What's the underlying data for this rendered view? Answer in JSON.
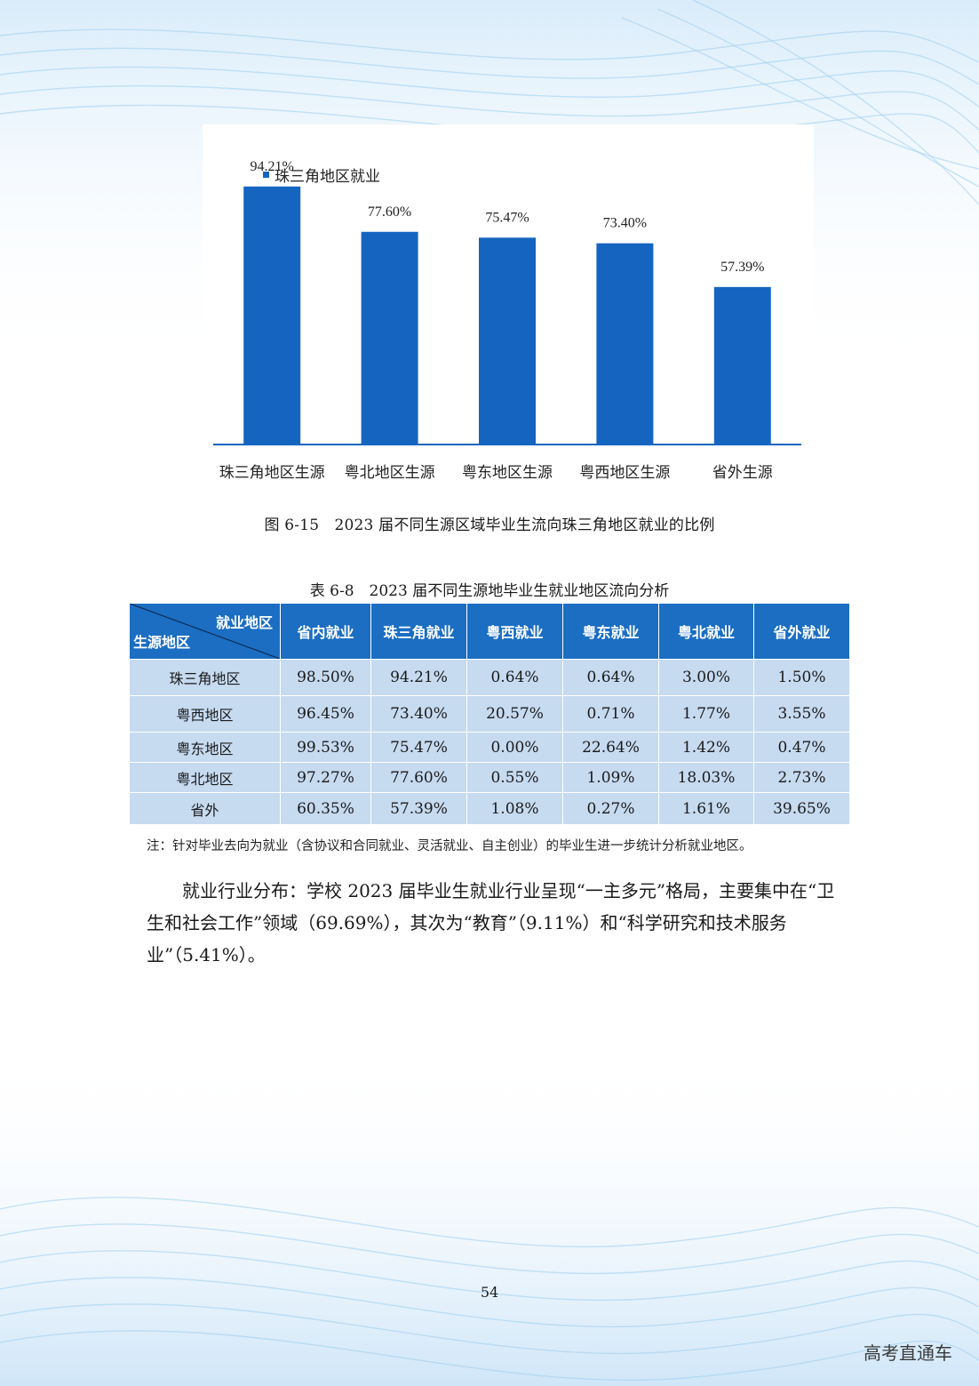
{
  "chart_data": {
    "type": "bar",
    "legend": "珠三角地区就业",
    "categories": [
      "珠三角地区生源",
      "粤北地区生源",
      "粤东地区生源",
      "粤西地区生源",
      "省外生源"
    ],
    "series": [
      {
        "name": "珠三角地区就业",
        "values": [
          94.21,
          77.6,
          75.47,
          73.4,
          57.39
        ]
      }
    ],
    "value_labels": [
      "94.21%",
      "77.60%",
      "75.47%",
      "73.40%",
      "57.39%"
    ],
    "ylim": [
      0,
      100
    ],
    "unit": "%",
    "grid": false,
    "legend_position": "top",
    "bar_color": "#1565c0"
  },
  "figure_caption": "图 6-15　2023 届不同生源区域毕业生流向珠三角地区就业的比例",
  "table": {
    "caption": "表 6-8　2023 届不同生源地毕业生就业地区流向分析",
    "corner_top": "就业地区",
    "corner_bottom": "生源地区",
    "columns": [
      "省内就业",
      "珠三角就业",
      "粤西就业",
      "粤东就业",
      "粤北就业",
      "省外就业"
    ],
    "rows": [
      {
        "label": "珠三角地区",
        "cells": [
          "98.50%",
          "94.21%",
          "0.64%",
          "0.64%",
          "3.00%",
          "1.50%"
        ]
      },
      {
        "label": "粤西地区",
        "cells": [
          "96.45%",
          "73.40%",
          "20.57%",
          "0.71%",
          "1.77%",
          "3.55%"
        ]
      },
      {
        "label": "粤东地区",
        "cells": [
          "99.53%",
          "75.47%",
          "0.00%",
          "22.64%",
          "1.42%",
          "0.47%"
        ]
      },
      {
        "label": "粤北地区",
        "cells": [
          "97.27%",
          "77.60%",
          "0.55%",
          "1.09%",
          "18.03%",
          "2.73%"
        ]
      },
      {
        "label": "省外",
        "cells": [
          "60.35%",
          "57.39%",
          "1.08%",
          "0.27%",
          "1.61%",
          "39.65%"
        ]
      }
    ],
    "header_color": "#1b6ec2",
    "body_color": "#c6daf0"
  },
  "note": "注：针对毕业去向为就业（含协议和合同就业、灵活就业、自主创业）的毕业生进一步统计分析就业地区。",
  "body_paragraph": "就业行业分布：学校 2023 届毕业生就业行业呈现“一主多元”格局，主要集中在“卫生和社会工作”领域（69.69%），其次为“教育”（9.11%）和“科学研究和技术服务业”（5.41%）。",
  "page_number": "54",
  "watermark": "高考直通车"
}
